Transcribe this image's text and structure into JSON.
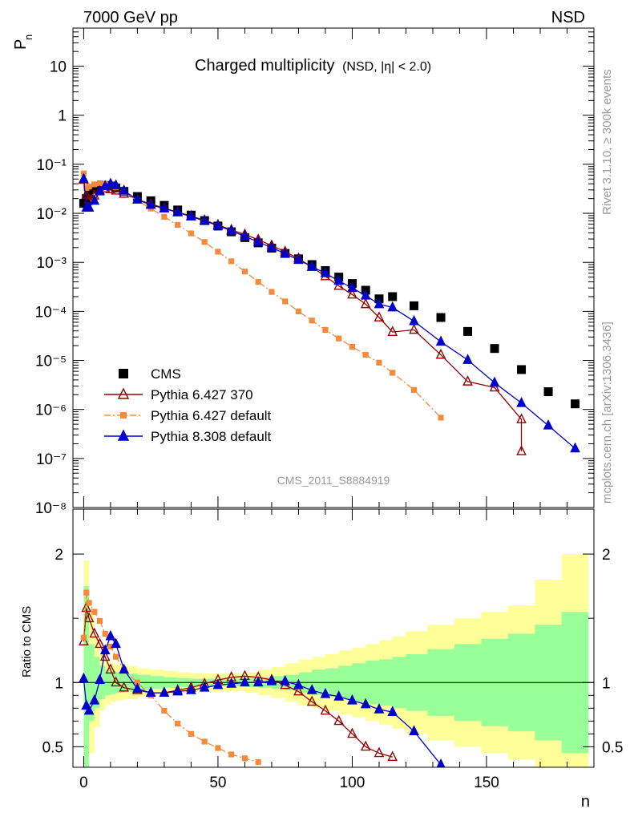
{
  "header": {
    "left": "7000 GeV pp",
    "right": "NSD"
  },
  "side_notes": {
    "rivet": "Rivet 3.1.10, ≥ 300k events",
    "mcplots": "mcplots.cern.ch [arXiv:1306.3436]"
  },
  "colors": {
    "cms": "#000000",
    "pythia6_370": "#990000",
    "pythia6_default": "#f58a3c",
    "pythia8_default": "#0000cc",
    "band_inner": "#99ff99",
    "band_outer": "#ffff99",
    "watermark": "#999999"
  },
  "chart_data": [
    {
      "type": "scatter",
      "panel": "main",
      "title": "Charged multiplicity",
      "title_suffix": "(NSD, |η| < 2.0)",
      "xlabel": "n",
      "ylabel": "P",
      "ylabel_sub": "n",
      "yscale": "log",
      "xlim": [
        -4,
        190
      ],
      "ylim": [
        1e-08,
        60
      ],
      "y_tick_labels": [
        "10⁻⁸",
        "10⁻⁷",
        "10⁻⁶",
        "10⁻⁵",
        "10⁻⁴",
        "10⁻³",
        "10⁻²",
        "10⁻¹",
        "1",
        "10"
      ],
      "watermark": "CMS_2011_S8884919",
      "legend_position": "lower-left",
      "legend": [
        {
          "label": "CMS",
          "marker": "square",
          "color_key": "cms"
        },
        {
          "label": "Pythia 6.427 370",
          "marker": "open-triangle",
          "color_key": "pythia6_370"
        },
        {
          "label": "Pythia 6.427 default",
          "marker": "square",
          "color_key": "pythia6_default"
        },
        {
          "label": "Pythia 8.308 default",
          "marker": "triangle",
          "color_key": "pythia8_default"
        }
      ],
      "series": [
        {
          "name": "CMS",
          "points": [
            [
              0,
              0.016
            ],
            [
              1,
              0.02
            ],
            [
              2,
              0.025
            ],
            [
              4,
              0.031
            ],
            [
              6,
              0.036
            ],
            [
              8,
              0.037
            ],
            [
              10,
              0.036
            ],
            [
              12,
              0.033
            ],
            [
              15,
              0.028
            ],
            [
              20,
              0.022
            ],
            [
              25,
              0.018
            ],
            [
              30,
              0.0145
            ],
            [
              35,
              0.0117
            ],
            [
              40,
              0.0092
            ],
            [
              45,
              0.0071
            ],
            [
              50,
              0.0055
            ],
            [
              55,
              0.0042
            ],
            [
              60,
              0.0032
            ],
            [
              65,
              0.0025
            ],
            [
              70,
              0.00195
            ],
            [
              75,
              0.00152
            ],
            [
              80,
              0.00118
            ],
            [
              85,
              0.0009
            ],
            [
              90,
              0.00068
            ],
            [
              95,
              0.0005
            ],
            [
              100,
              0.00037
            ],
            [
              105,
              0.00027
            ],
            [
              110,
              0.00018
            ],
            [
              115,
              0.0002
            ],
            [
              123,
              0.00013
            ],
            [
              133,
              7.5e-05
            ],
            [
              143,
              3.9e-05
            ],
            [
              153,
              1.75e-05
            ],
            [
              163,
              6.5e-06
            ],
            [
              173,
              2.3e-06
            ],
            [
              183,
              1.3e-06
            ]
          ]
        },
        {
          "name": "Pythia 6.427 370",
          "points": [
            [
              0,
              0.048
            ],
            [
              1,
              0.024
            ],
            [
              2,
              0.019
            ],
            [
              4,
              0.023
            ],
            [
              6,
              0.029
            ],
            [
              8,
              0.032
            ],
            [
              10,
              0.031
            ],
            [
              12,
              0.029
            ],
            [
              15,
              0.025
            ],
            [
              20,
              0.019
            ],
            [
              25,
              0.0155
            ],
            [
              30,
              0.0128
            ],
            [
              35,
              0.0106
            ],
            [
              40,
              0.0088
            ],
            [
              45,
              0.0072
            ],
            [
              50,
              0.0058
            ],
            [
              55,
              0.0046
            ],
            [
              60,
              0.0037
            ],
            [
              65,
              0.0029
            ],
            [
              70,
              0.0022
            ],
            [
              75,
              0.00165
            ],
            [
              80,
              0.0012
            ],
            [
              85,
              0.0008
            ],
            [
              90,
              0.00052
            ],
            [
              95,
              0.00033
            ],
            [
              100,
              0.00022
            ],
            [
              105,
              0.00014
            ],
            [
              110,
              7.5e-05
            ],
            [
              115,
              3.8e-05
            ],
            [
              123,
              4.2e-05
            ],
            [
              133,
              1.3e-05
            ],
            [
              143,
              3.7e-06
            ],
            [
              153,
              2.8e-06
            ],
            [
              163,
              6.3e-07
            ],
            [
              163,
              1.4e-07
            ]
          ]
        },
        {
          "name": "Pythia 6.427 default",
          "points": [
            [
              0,
              0.065
            ],
            [
              1,
              0.033
            ],
            [
              2,
              0.035
            ],
            [
              4,
              0.039
            ],
            [
              6,
              0.041
            ],
            [
              8,
              0.04
            ],
            [
              10,
              0.038
            ],
            [
              12,
              0.034
            ],
            [
              15,
              0.027
            ],
            [
              20,
              0.018
            ],
            [
              25,
              0.0125
            ],
            [
              30,
              0.0085
            ],
            [
              35,
              0.0058
            ],
            [
              40,
              0.0039
            ],
            [
              45,
              0.0026
            ],
            [
              50,
              0.00165
            ],
            [
              55,
              0.00105
            ],
            [
              60,
              0.00065
            ],
            [
              65,
              0.0004
            ],
            [
              70,
              0.00025
            ],
            [
              75,
              0.00016
            ],
            [
              80,
              0.0001
            ],
            [
              85,
              6.5e-05
            ],
            [
              90,
              4.2e-05
            ],
            [
              95,
              2.8e-05
            ],
            [
              100,
              1.9e-05
            ],
            [
              105,
              1.3e-05
            ],
            [
              110,
              9e-06
            ],
            [
              115,
              5.6e-06
            ],
            [
              123,
              2.5e-06
            ],
            [
              133,
              6.8e-07
            ]
          ]
        },
        {
          "name": "Pythia 8.308 default",
          "points": [
            [
              0,
              0.05
            ],
            [
              1,
              0.013
            ],
            [
              2,
              0.013
            ],
            [
              4,
              0.018
            ],
            [
              6,
              0.028
            ],
            [
              8,
              0.036
            ],
            [
              10,
              0.04
            ],
            [
              12,
              0.037
            ],
            [
              15,
              0.029
            ],
            [
              20,
              0.019
            ],
            [
              25,
              0.0148
            ],
            [
              30,
              0.0125
            ],
            [
              35,
              0.0104
            ],
            [
              40,
              0.0086
            ],
            [
              45,
              0.007
            ],
            [
              50,
              0.0056
            ],
            [
              55,
              0.0044
            ],
            [
              60,
              0.0034
            ],
            [
              65,
              0.0026
            ],
            [
              70,
              0.002
            ],
            [
              75,
              0.0015
            ],
            [
              80,
              0.00112
            ],
            [
              85,
              0.00082
            ],
            [
              90,
              0.0006
            ],
            [
              95,
              0.00042
            ],
            [
              100,
              0.0003
            ],
            [
              105,
              0.00021
            ],
            [
              110,
              0.00014
            ],
            [
              115,
              0.00012
            ],
            [
              123,
              6.3e-05
            ],
            [
              133,
              2.4e-05
            ],
            [
              143,
              1.02e-05
            ],
            [
              153,
              3.5e-06
            ],
            [
              163,
              1.35e-06
            ],
            [
              173,
              4.7e-07
            ],
            [
              183,
              1.6e-07
            ]
          ]
        }
      ]
    },
    {
      "type": "line",
      "panel": "ratio",
      "xlabel": "n",
      "ylabel": "Ratio to CMS",
      "xlim": [
        -4,
        190
      ],
      "ylim": [
        0.34,
        2.35
      ],
      "x_tick_labels": [
        "0",
        "50",
        "100",
        "150"
      ],
      "y_tick_labels": [
        "0.5",
        "1",
        "2"
      ],
      "bands": {
        "x": [
          0,
          2,
          4,
          6,
          8,
          10,
          12,
          15,
          20,
          25,
          30,
          35,
          40,
          45,
          50,
          55,
          60,
          65,
          70,
          75,
          80,
          85,
          90,
          95,
          100,
          105,
          110,
          115,
          120,
          128,
          138,
          148,
          158,
          168,
          178,
          188
        ],
        "inner": [
          0.75,
          0.3,
          0.2,
          0.13,
          0.1,
          0.09,
          0.08,
          0.07,
          0.06,
          0.05,
          0.04,
          0.035,
          0.03,
          0.03,
          0.03,
          0.03,
          0.035,
          0.04,
          0.05,
          0.06,
          0.08,
          0.1,
          0.11,
          0.13,
          0.15,
          0.17,
          0.18,
          0.2,
          0.22,
          0.26,
          0.3,
          0.34,
          0.38,
          0.45,
          0.55,
          0.55
        ],
        "outer": [
          0.95,
          0.55,
          0.35,
          0.22,
          0.17,
          0.15,
          0.14,
          0.13,
          0.11,
          0.1,
          0.09,
          0.08,
          0.07,
          0.07,
          0.07,
          0.07,
          0.08,
          0.1,
          0.12,
          0.15,
          0.18,
          0.2,
          0.22,
          0.25,
          0.27,
          0.3,
          0.33,
          0.36,
          0.4,
          0.45,
          0.5,
          0.55,
          0.6,
          0.8,
          1.0,
          1.0
        ]
      },
      "series": [
        {
          "name": "Pythia 6.427 370",
          "points": [
            [
              0,
              1.32
            ],
            [
              1,
              1.58
            ],
            [
              2,
              1.5
            ],
            [
              4,
              1.38
            ],
            [
              6,
              1.3
            ],
            [
              8,
              1.2
            ],
            [
              10,
              1.1
            ],
            [
              12,
              1.0
            ],
            [
              15,
              0.96
            ],
            [
              20,
              0.94
            ],
            [
              25,
              0.92
            ],
            [
              30,
              0.92
            ],
            [
              35,
              0.94
            ],
            [
              40,
              0.96
            ],
            [
              45,
              0.99
            ],
            [
              50,
              1.02
            ],
            [
              55,
              1.04
            ],
            [
              60,
              1.05
            ],
            [
              65,
              1.04
            ],
            [
              70,
              1.02
            ],
            [
              75,
              0.98
            ],
            [
              80,
              0.93
            ],
            [
              85,
              0.85
            ],
            [
              90,
              0.78
            ],
            [
              95,
              0.7
            ],
            [
              100,
              0.6
            ],
            [
              105,
              0.5
            ],
            [
              110,
              0.45
            ],
            [
              115,
              0.42
            ]
          ]
        },
        {
          "name": "Pythia 6.427 default",
          "points": [
            [
              0,
              1.35
            ],
            [
              1,
              1.7
            ],
            [
              2,
              1.62
            ],
            [
              4,
              1.55
            ],
            [
              6,
              1.48
            ],
            [
              8,
              1.38
            ],
            [
              10,
              1.28
            ],
            [
              12,
              1.2
            ],
            [
              15,
              1.1
            ],
            [
              20,
              1.0
            ],
            [
              25,
              0.9
            ],
            [
              30,
              0.78
            ],
            [
              35,
              0.68
            ],
            [
              40,
              0.6
            ],
            [
              45,
              0.54
            ],
            [
              50,
              0.49
            ],
            [
              55,
              0.44
            ],
            [
              60,
              0.41
            ],
            [
              65,
              0.38
            ]
          ]
        },
        {
          "name": "Pythia 8.308 default",
          "points": [
            [
              0,
              1.03
            ],
            [
              1,
              0.82
            ],
            [
              2,
              0.78
            ],
            [
              4,
              0.86
            ],
            [
              6,
              1.02
            ],
            [
              8,
              1.25
            ],
            [
              10,
              1.36
            ],
            [
              12,
              1.3
            ],
            [
              15,
              1.1
            ],
            [
              20,
              0.95
            ],
            [
              25,
              0.92
            ],
            [
              30,
              0.92
            ],
            [
              35,
              0.93
            ],
            [
              40,
              0.94
            ],
            [
              45,
              0.96
            ],
            [
              50,
              0.98
            ],
            [
              55,
              0.99
            ],
            [
              60,
              1.0
            ],
            [
              65,
              1.0
            ],
            [
              70,
              1.01
            ],
            [
              75,
              1.01
            ],
            [
              80,
              0.98
            ],
            [
              85,
              0.94
            ],
            [
              90,
              0.91
            ],
            [
              95,
              0.89
            ],
            [
              100,
              0.86
            ],
            [
              105,
              0.83
            ],
            [
              110,
              0.79
            ],
            [
              115,
              0.77
            ],
            [
              123,
              0.62
            ],
            [
              133,
              0.36
            ]
          ]
        }
      ]
    }
  ]
}
